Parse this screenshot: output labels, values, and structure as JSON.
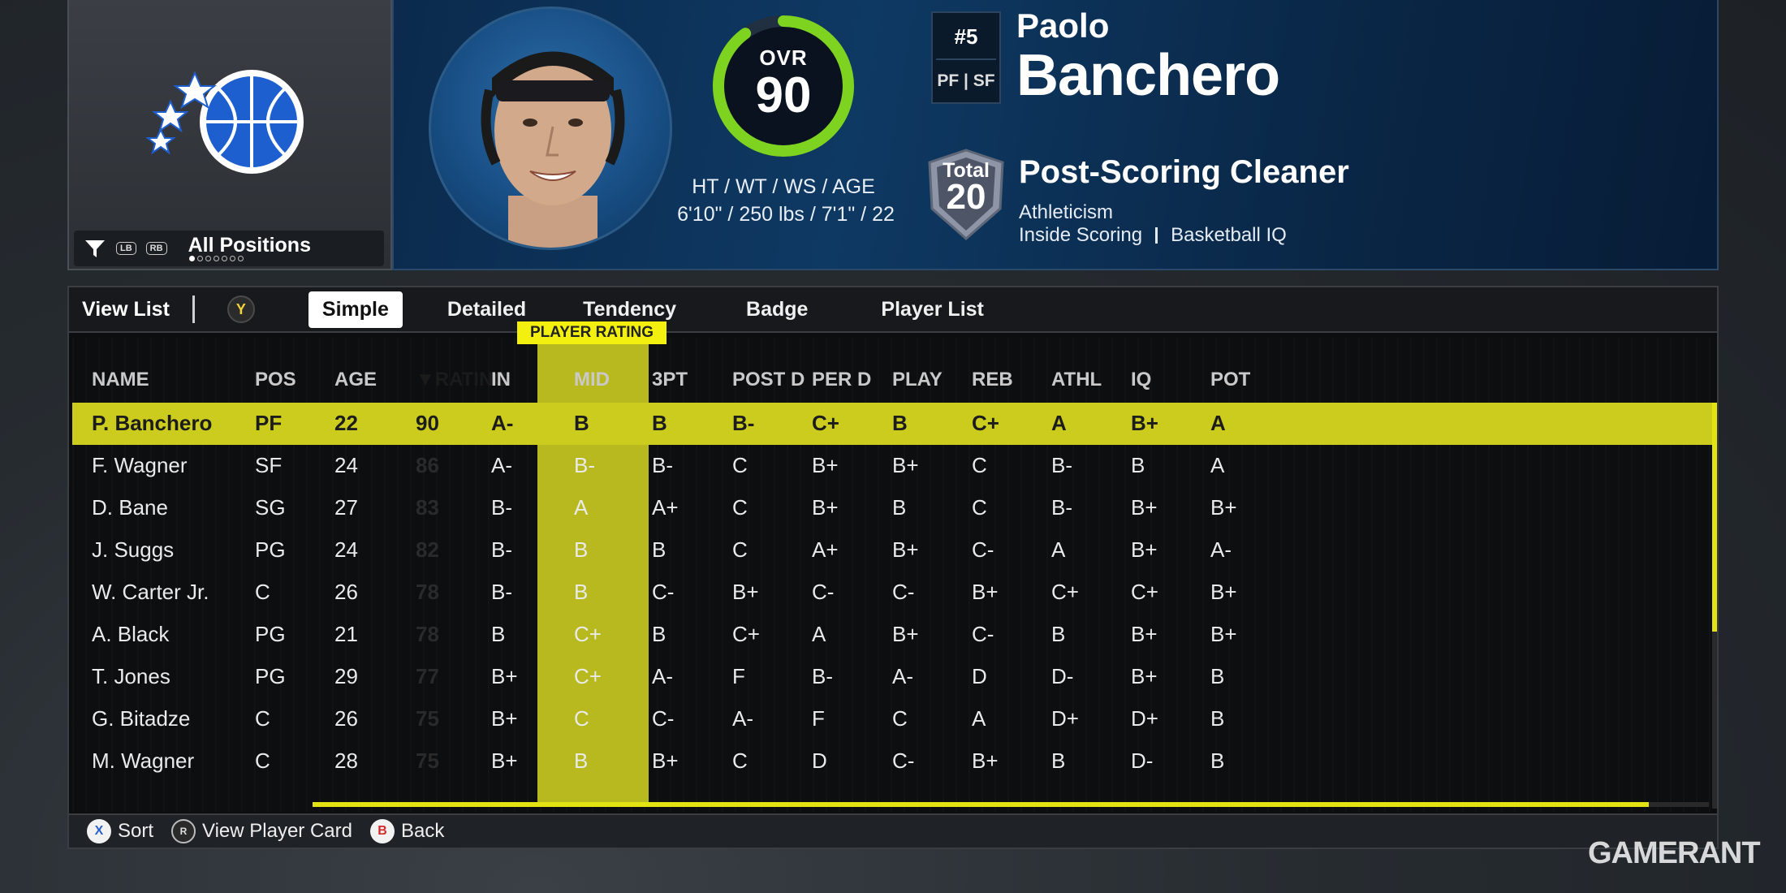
{
  "team": {
    "logo_icon": "orlando-magic-logo",
    "filter_label": "All Positions",
    "bumper_left": "LB",
    "bumper_right": "RB"
  },
  "player": {
    "portrait_icon": "player-portrait",
    "ovr_label": "OVR",
    "ovr_value": "90",
    "ovr_fraction": 0.9,
    "bio_label": "HT / WT / WS / AGE",
    "bio_value": "6'10\" / 250 lbs / 7'1\" / 22",
    "jersey": "#5",
    "positions": "PF | SF",
    "first_name": "Paolo",
    "last_name": "Banchero",
    "badge_total_label": "Total",
    "badge_total": "20",
    "archetype": "Post-Scoring Cleaner",
    "attr1": "Athleticism",
    "attr2": "Inside Scoring",
    "attr3": "Basketball IQ"
  },
  "tabs": {
    "view_list": "View List",
    "y_button": "Y",
    "items": [
      "Simple",
      "Detailed",
      "Tendency",
      "Badge",
      "Player List"
    ],
    "active": "Simple"
  },
  "table": {
    "sort_tag": "PLAYER RATING",
    "headers": [
      "NAME",
      "POS",
      "AGE",
      "▼RATING",
      "IN",
      "MID",
      "3PT",
      "POST D",
      "PER D",
      "PLAY",
      "REB",
      "ATHL",
      "IQ",
      "POT"
    ],
    "rows": [
      [
        "P. Banchero",
        "PF",
        "22",
        "90",
        "A-",
        "B",
        "B",
        "B-",
        "C+",
        "B",
        "C+",
        "A",
        "B+",
        "A"
      ],
      [
        "F. Wagner",
        "SF",
        "24",
        "86",
        "A-",
        "B-",
        "B-",
        "C",
        "B+",
        "B+",
        "C",
        "B-",
        "B",
        "A"
      ],
      [
        "D. Bane",
        "SG",
        "27",
        "83",
        "B-",
        "A",
        "A+",
        "C",
        "B+",
        "B",
        "C",
        "B-",
        "B+",
        "B+"
      ],
      [
        "J. Suggs",
        "PG",
        "24",
        "82",
        "B-",
        "B",
        "B",
        "C",
        "A+",
        "B+",
        "C-",
        "A",
        "B+",
        "A-"
      ],
      [
        "W. Carter Jr.",
        "C",
        "26",
        "78",
        "B-",
        "B",
        "C-",
        "B+",
        "C-",
        "C-",
        "B+",
        "C+",
        "C+",
        "B+"
      ],
      [
        "A. Black",
        "PG",
        "21",
        "78",
        "B",
        "C+",
        "B",
        "C+",
        "A",
        "B+",
        "C-",
        "B",
        "B+",
        "B+"
      ],
      [
        "T. Jones",
        "PG",
        "29",
        "77",
        "B+",
        "C+",
        "A-",
        "F",
        "B-",
        "A-",
        "D",
        "D-",
        "B+",
        "B"
      ],
      [
        "G. Bitadze",
        "C",
        "26",
        "75",
        "B+",
        "C",
        "C-",
        "A-",
        "F",
        "C",
        "A",
        "D+",
        "D+",
        "B"
      ],
      [
        "M. Wagner",
        "C",
        "28",
        "75",
        "B+",
        "B",
        "B+",
        "C",
        "D",
        "C-",
        "B+",
        "B",
        "D-",
        "B"
      ]
    ],
    "selected_row": 0
  },
  "footer": {
    "sort_btn": "X",
    "sort_label": "Sort",
    "card_btn": "R",
    "card_label": "View Player Card",
    "back_btn": "B",
    "back_label": "Back"
  },
  "watermark": {
    "game": "GAME",
    "rant": "RANT"
  },
  "colors": {
    "accent_yellow": "#cbcc1d",
    "rating_column": "#b8b91f",
    "ovr_ring": "#7ed321",
    "header_blue": "#0e3963"
  }
}
